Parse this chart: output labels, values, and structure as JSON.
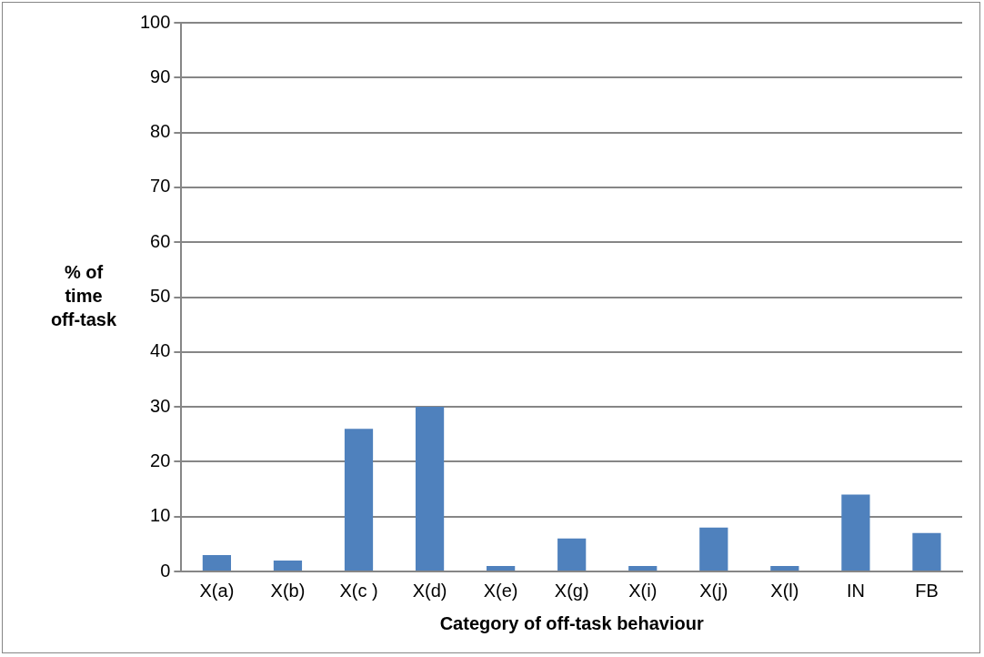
{
  "chart_data": {
    "type": "bar",
    "xlabel": "Category of off-task behaviour",
    "ylabel": "% of time off-task",
    "categories": [
      "X(a)",
      "X(b)",
      "X(c )",
      "X(d)",
      "X(e)",
      "X(g)",
      "X(i)",
      "X(j)",
      "X(l)",
      "IN",
      "FB"
    ],
    "values": [
      3,
      2,
      26,
      30,
      1,
      6,
      1,
      8,
      1,
      14,
      7
    ],
    "color": "#4f81bd",
    "ylim": [
      0,
      100
    ],
    "yticks": [
      0,
      10,
      20,
      30,
      40,
      50,
      60,
      70,
      80,
      90,
      100
    ],
    "grid": "y",
    "legend": false
  }
}
